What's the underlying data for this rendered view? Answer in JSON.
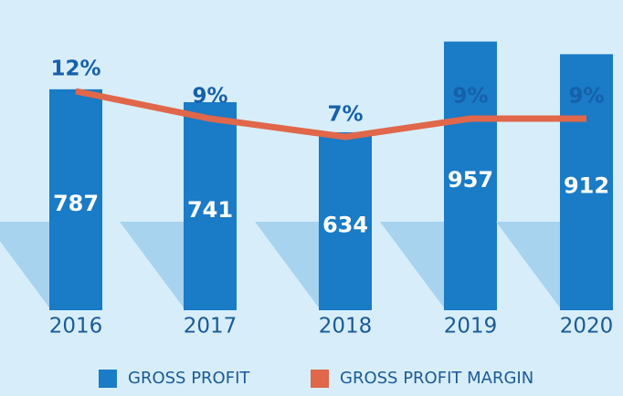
{
  "chart_data": {
    "type": "bar",
    "categories": [
      "2016",
      "2017",
      "2018",
      "2019",
      "2020"
    ],
    "series": [
      {
        "name": "GROSS PROFIT",
        "color": "#1a7bc6",
        "values": [
          787,
          741,
          634,
          957,
          912
        ]
      },
      {
        "name": "GROSS PROFIT MARGIN",
        "color": "#e0674a",
        "type": "line",
        "axis": "y2",
        "values": [
          12,
          9,
          7,
          9,
          9
        ],
        "value_labels": [
          "12%",
          "9%",
          "7%",
          "9%",
          "9%"
        ]
      }
    ],
    "ylim": [
      0,
      1040
    ],
    "y2lim": [
      -12,
      20
    ]
  }
}
